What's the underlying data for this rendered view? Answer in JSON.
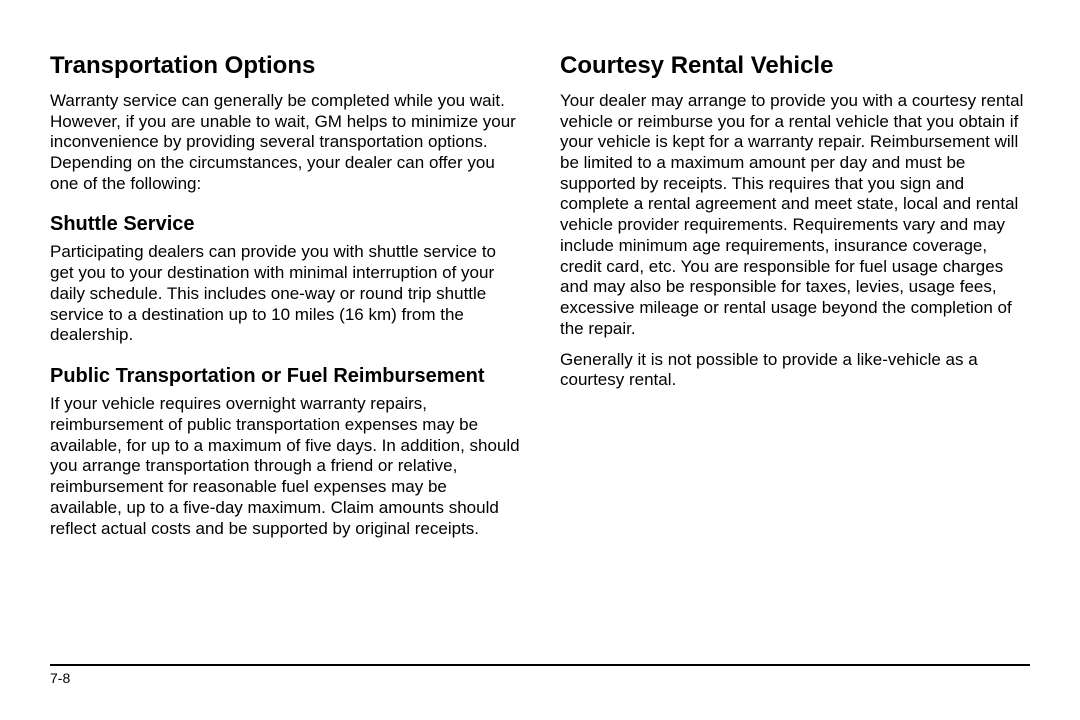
{
  "page_number": "7-8",
  "left": {
    "heading": "Transportation Options",
    "intro": "Warranty service can generally be completed while you wait. However, if you are unable to wait, GM helps to minimize your inconvenience by providing several transportation options. Depending on the circumstances, your dealer can offer you one of the following:",
    "shuttle": {
      "heading": "Shuttle Service",
      "body": "Participating dealers can provide you with shuttle service to get you to your destination with minimal interruption of your daily schedule. This includes one-way or round trip shuttle service to a destination up to 10 miles (16 km) from the dealership."
    },
    "public": {
      "heading": "Public Transportation or Fuel Reimbursement",
      "body": "If your vehicle requires overnight warranty repairs, reimbursement of public transportation expenses may be available, for up to a maximum of five days. In addition, should you arrange transportation through a friend or relative, reimbursement for reasonable fuel expenses may be available, up to a five-day maximum. Claim amounts should reflect actual costs and be supported by original receipts."
    }
  },
  "right": {
    "rental": {
      "heading": "Courtesy Rental Vehicle",
      "body1": "Your dealer may arrange to provide you with a courtesy rental vehicle or reimburse you for a rental vehicle that you obtain if your vehicle is kept for a warranty repair. Reimbursement will be limited to a maximum amount per day and must be supported by receipts. This requires that you sign and complete a rental agreement and meet state, local and rental vehicle provider requirements. Requirements vary and may include minimum age requirements, insurance coverage, credit card, etc. You are responsible for fuel usage charges and may also be responsible for taxes, levies, usage fees, excessive mileage or rental usage beyond the completion of the repair.",
      "body2": "Generally it is not possible to provide a like-vehicle as a courtesy rental."
    }
  }
}
